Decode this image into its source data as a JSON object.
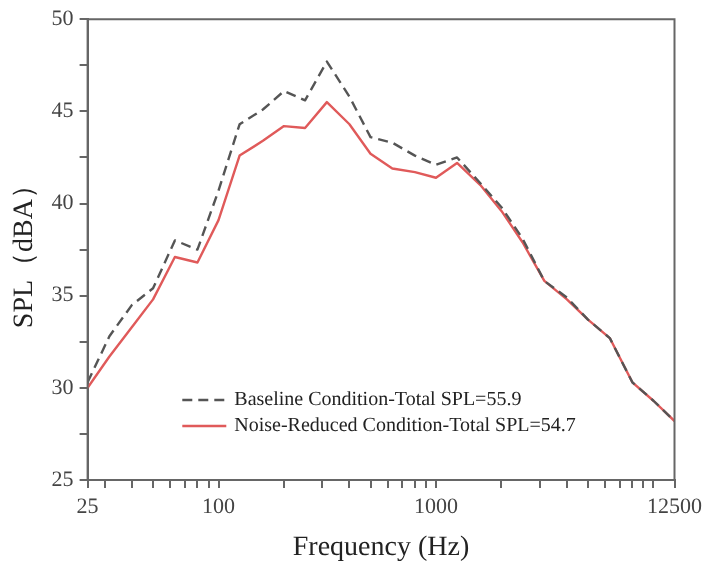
{
  "chart_data": {
    "type": "line",
    "xlabel": "Frequency (Hz)",
    "ylabel": "SPL（dBA）",
    "log": "x",
    "x": [
      25,
      31.5,
      40,
      50,
      63,
      80,
      100,
      125,
      160,
      200,
      250,
      315,
      400,
      500,
      630,
      800,
      1000,
      1250,
      1600,
      2000,
      2500,
      3150,
      4000,
      5000,
      6300,
      8000,
      10000,
      12500
    ],
    "series": [
      {
        "name": "Baseline Condition-Total SPL=55.9",
        "color": "#555555",
        "line_style": "dashed",
        "values": [
          30.3,
          32.8,
          34.5,
          35.4,
          38.0,
          37.5,
          40.7,
          44.3,
          45.1,
          46.1,
          45.6,
          47.7,
          45.8,
          43.6,
          43.3,
          42.6,
          42.1,
          42.5,
          41.1,
          39.8,
          38.1,
          35.8,
          34.9,
          33.7,
          32.7,
          30.3,
          29.3,
          28.2
        ]
      },
      {
        "name": "Noise-Reduced Condition-Total SPL=54.7",
        "color": "#e05a5a",
        "line_style": "solid",
        "values": [
          30.0,
          31.7,
          33.3,
          34.8,
          37.1,
          36.8,
          39.1,
          42.6,
          43.4,
          44.2,
          44.1,
          45.5,
          44.3,
          42.7,
          41.9,
          41.7,
          41.4,
          42.2,
          41.0,
          39.6,
          37.9,
          35.8,
          34.8,
          33.7,
          32.7,
          30.3,
          29.3,
          28.2
        ]
      }
    ],
    "xlim": [
      25,
      12500
    ],
    "xticks": [
      25,
      {
        "value": 30,
        "label": null
      },
      {
        "value": 40,
        "label": null
      },
      {
        "value": 50,
        "label": null
      },
      {
        "value": 60,
        "label": null
      },
      {
        "value": 70,
        "label": null
      },
      {
        "value": 80,
        "label": null
      },
      {
        "value": 90,
        "label": null
      },
      100,
      {
        "value": 200,
        "label": null
      },
      {
        "value": 300,
        "label": null
      },
      {
        "value": 400,
        "label": null
      },
      {
        "value": 500,
        "label": null
      },
      {
        "value": 600,
        "label": null
      },
      {
        "value": 700,
        "label": null
      },
      {
        "value": 800,
        "label": null
      },
      {
        "value": 900,
        "label": null
      },
      1000,
      {
        "value": 2000,
        "label": null
      },
      {
        "value": 3000,
        "label": null
      },
      {
        "value": 4000,
        "label": null
      },
      {
        "value": 5000,
        "label": null
      },
      {
        "value": 6000,
        "label": null
      },
      {
        "value": 7000,
        "label": null
      },
      {
        "value": 8000,
        "label": null
      },
      {
        "value": 9000,
        "label": null
      },
      {
        "value": 10000,
        "label": null
      },
      12500
    ],
    "ylim": [
      25,
      50
    ],
    "yticks": [
      25,
      {
        "value": 27.5,
        "label": null
      },
      30,
      {
        "value": 32.5,
        "label": null
      },
      35,
      {
        "value": 37.5,
        "label": null
      },
      40,
      {
        "value": 42.5,
        "label": null
      },
      45,
      {
        "value": 47.5,
        "label": null
      },
      50
    ],
    "grid": false,
    "legend": "bottom",
    "marker": "none"
  }
}
